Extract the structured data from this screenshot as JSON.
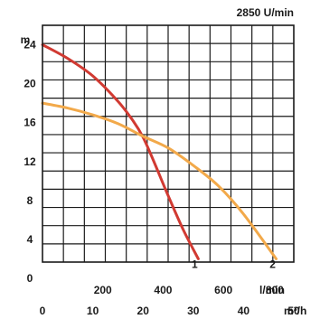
{
  "chart_data": {
    "type": "line",
    "title": "2850 U/min",
    "ylabel": "m",
    "ylim": [
      0,
      26
    ],
    "y_ticks": [
      0,
      4,
      8,
      12,
      16,
      20,
      24
    ],
    "x_primary": {
      "unit": "l/min",
      "ticks": [
        200,
        400,
        600,
        800
      ],
      "range": [
        0,
        833
      ]
    },
    "x_secondary": {
      "unit": "m³/h",
      "ticks": [
        0,
        10,
        20,
        30,
        40,
        50
      ],
      "range": [
        0,
        50
      ]
    },
    "grid": true,
    "series": [
      {
        "name": "1",
        "color": "#d13a32",
        "x": [
          0,
          5,
          10,
          15,
          18,
          20,
          22,
          25,
          28,
          31
        ],
        "y": [
          24,
          22.6,
          20.8,
          18.2,
          16.2,
          14.5,
          12.2,
          8.5,
          5,
          2
        ]
      },
      {
        "name": "2",
        "color": "#f2a94a",
        "x": [
          0,
          5,
          10,
          15,
          20,
          25,
          30,
          35,
          40,
          46.5
        ],
        "y": [
          18,
          17.5,
          16.8,
          15.9,
          14.6,
          13.4,
          11.6,
          9.5,
          6.6,
          2
        ]
      }
    ]
  }
}
